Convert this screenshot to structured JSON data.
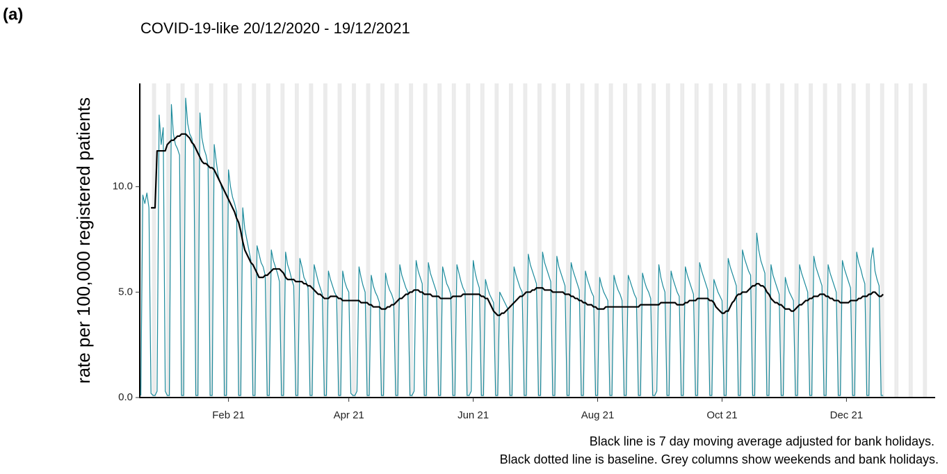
{
  "chart_data": {
    "type": "line",
    "panel_label": "(a)",
    "title": "COVID-19-like 20/12/2020 - 19/12/2021",
    "ylabel": "rate per 100,000 registered patients",
    "notes": [
      "Black line is 7 day moving average adjusted for bank holidays.",
      "Black dotted line is baseline. Grey columns show weekends and bank holidays."
    ],
    "ylim": [
      0,
      14.9
    ],
    "yticks": [
      {
        "value": 0,
        "label": "0.0"
      },
      {
        "value": 5,
        "label": "5.0"
      },
      {
        "value": 10,
        "label": "10.0"
      }
    ],
    "categories": [
      null,
      null,
      null,
      null,
      null,
      null,
      null,
      null,
      null,
      null,
      null,
      null,
      null,
      null,
      null,
      null,
      null,
      null,
      null,
      null,
      null,
      null,
      null,
      null,
      null,
      null,
      null,
      null,
      null,
      null,
      null,
      null,
      null,
      null,
      null,
      null,
      null,
      null,
      null,
      null,
      null,
      null,
      null,
      "Feb 21",
      null,
      null,
      null,
      null,
      null,
      null,
      null,
      null,
      null,
      null,
      null,
      null,
      null,
      null,
      null,
      null,
      null,
      null,
      null,
      null,
      null,
      null,
      null,
      null,
      null,
      null,
      null,
      null,
      null,
      null,
      null,
      null,
      null,
      null,
      null,
      null,
      null,
      null,
      null,
      null,
      null,
      null,
      null,
      null,
      null,
      null,
      null,
      null,
      null,
      null,
      null,
      null,
      null,
      null,
      null,
      null,
      null,
      null,
      "Apr 21",
      null,
      null,
      null,
      null,
      null,
      null,
      null,
      null,
      null,
      null,
      null,
      null,
      null,
      null,
      null,
      null,
      null,
      null,
      null,
      null,
      null,
      null,
      null,
      null,
      null,
      null,
      null,
      null,
      null,
      null,
      null,
      null,
      null,
      null,
      null,
      null,
      null,
      null,
      null,
      null,
      null,
      null,
      null,
      null,
      null,
      null,
      null,
      null,
      null,
      null,
      null,
      null,
      null,
      null,
      null,
      null,
      null,
      null,
      null,
      null,
      "Jun 21",
      null,
      null,
      null,
      null,
      null,
      null,
      null,
      null,
      null,
      null,
      null,
      null,
      null,
      null,
      null,
      null,
      null,
      null,
      null,
      null,
      null,
      null,
      null,
      null,
      null,
      null,
      null,
      null,
      null,
      null,
      null,
      null,
      null,
      null,
      null,
      null,
      null,
      null,
      null,
      null,
      null,
      null,
      null,
      null,
      null,
      null,
      null,
      null,
      null,
      null,
      null,
      null,
      null,
      null,
      null,
      null,
      null,
      null,
      null,
      null,
      "Aug 21",
      null,
      null,
      null,
      null,
      null,
      null,
      null,
      null,
      null,
      null,
      null,
      null,
      null,
      null,
      null,
      null,
      null,
      null,
      null,
      null,
      null,
      null,
      null,
      null,
      null,
      null,
      null,
      null,
      null,
      null,
      null,
      null,
      null,
      null,
      null,
      null,
      null,
      null,
      null,
      null,
      null,
      null,
      null,
      null,
      null,
      null,
      null,
      null,
      null,
      null,
      null,
      null,
      null,
      null,
      null,
      null,
      null,
      null,
      null,
      null,
      "Oct 21",
      null,
      null,
      null,
      null,
      null,
      null,
      null,
      null,
      null,
      null,
      null,
      null,
      null,
      null,
      null,
      null,
      null,
      null,
      null,
      null,
      null,
      null,
      null,
      null,
      null,
      null,
      null,
      null,
      null,
      null,
      null,
      null,
      null,
      null,
      null,
      null,
      null,
      null,
      null,
      null,
      null,
      null,
      null,
      null,
      null,
      null,
      null,
      null,
      null,
      null,
      null,
      null,
      null,
      null,
      null,
      null,
      null,
      null,
      null,
      null,
      "Dec 21",
      null,
      null,
      null,
      null,
      null,
      null,
      null,
      null,
      null,
      null,
      null,
      null,
      null,
      null,
      null,
      null,
      null,
      null,
      null,
      null,
      null,
      null,
      null,
      null,
      null,
      null,
      null,
      null,
      null,
      null,
      null,
      null,
      null,
      null,
      null,
      null,
      null,
      null,
      null,
      null,
      null,
      null,
      null
    ],
    "series": [
      {
        "color": "#1b8a9b",
        "width": 1.2,
        "values": [
          0.1,
          9.6,
          9.2,
          9.7,
          9.0,
          0.2,
          0.1,
          0.1,
          0.3,
          13.4,
          12.0,
          12.8,
          0.3,
          0.1,
          0.1,
          13.9,
          12.5,
          12.0,
          11.8,
          11.5,
          0.1,
          0.1,
          14.2,
          13.0,
          12.5,
          12.3,
          11.8,
          0.1,
          0.1,
          13.5,
          12.3,
          11.8,
          11.5,
          11.0,
          0.1,
          0.1,
          12.0,
          11.2,
          10.5,
          10.2,
          9.8,
          0.1,
          0.1,
          10.8,
          10.0,
          9.5,
          9.2,
          8.8,
          0.1,
          0.1,
          9.0,
          8.0,
          7.5,
          7.0,
          6.5,
          0.1,
          0.1,
          7.2,
          6.8,
          6.4,
          6.2,
          5.8,
          0.1,
          0.1,
          7.0,
          6.5,
          6.2,
          5.9,
          5.5,
          0.1,
          0.1,
          6.9,
          6.3,
          6.0,
          5.6,
          5.3,
          0.1,
          0.1,
          6.6,
          6.2,
          5.7,
          5.5,
          5.2,
          0.1,
          0.1,
          6.3,
          5.9,
          5.5,
          5.2,
          4.9,
          0.1,
          0.1,
          6.0,
          5.6,
          5.3,
          5.0,
          4.8,
          0.1,
          0.1,
          6.0,
          5.5,
          5.2,
          5.0,
          0.2,
          0.1,
          0.1,
          0.3,
          6.2,
          5.7,
          5.3,
          5.0,
          0.1,
          0.1,
          5.8,
          5.3,
          5.0,
          4.8,
          4.5,
          0.1,
          0.1,
          5.9,
          5.4,
          5.1,
          4.9,
          4.6,
          0.1,
          0.1,
          6.3,
          5.8,
          5.5,
          5.2,
          5.0,
          0.1,
          0.1,
          0.3,
          6.5,
          6.0,
          5.7,
          5.4,
          0.1,
          0.1,
          6.4,
          5.9,
          5.6,
          5.3,
          5.0,
          0.1,
          0.1,
          6.2,
          5.8,
          5.4,
          5.2,
          4.9,
          0.1,
          0.1,
          6.3,
          5.9,
          5.5,
          5.2,
          5.0,
          0.1,
          0.1,
          0.3,
          6.5,
          5.9,
          5.5,
          5.2,
          0.1,
          0.1,
          5.6,
          5.2,
          4.9,
          4.7,
          4.5,
          0.1,
          0.1,
          5.0,
          4.8,
          4.6,
          4.4,
          4.2,
          0.1,
          0.1,
          6.2,
          5.8,
          5.5,
          5.2,
          5.0,
          0.1,
          0.1,
          6.8,
          6.3,
          6.0,
          5.7,
          5.4,
          0.1,
          0.1,
          6.9,
          6.4,
          6.1,
          5.8,
          5.5,
          0.1,
          0.1,
          6.7,
          6.2,
          5.9,
          5.6,
          5.3,
          0.1,
          0.1,
          6.4,
          6.0,
          5.7,
          5.4,
          5.1,
          0.1,
          0.1,
          6.0,
          5.6,
          5.3,
          5.0,
          4.8,
          0.1,
          0.1,
          5.7,
          5.3,
          5.0,
          4.8,
          4.6,
          0.1,
          0.1,
          5.8,
          5.4,
          5.1,
          4.9,
          4.6,
          0.1,
          0.1,
          5.8,
          5.5,
          5.2,
          4.9,
          4.7,
          0.1,
          0.1,
          5.9,
          5.5,
          5.2,
          5.0,
          4.7,
          0.1,
          0.1,
          0.3,
          6.3,
          5.7,
          5.3,
          5.0,
          0.1,
          0.1,
          6.0,
          5.6,
          5.3,
          5.0,
          4.8,
          0.1,
          0.1,
          6.2,
          5.8,
          5.5,
          5.2,
          4.9,
          0.1,
          0.1,
          6.4,
          6.0,
          5.7,
          5.4,
          5.1,
          0.1,
          0.1,
          5.6,
          5.3,
          5.0,
          4.8,
          4.6,
          0.1,
          0.1,
          6.6,
          6.2,
          5.9,
          5.6,
          5.3,
          0.1,
          0.1,
          7.0,
          6.6,
          6.3,
          6.0,
          5.8,
          0.1,
          0.1,
          7.8,
          7.0,
          6.5,
          6.2,
          5.9,
          0.1,
          0.1,
          6.3,
          5.8,
          5.5,
          5.2,
          4.9,
          0.1,
          0.1,
          5.7,
          5.3,
          5.0,
          4.8,
          4.6,
          0.1,
          0.1,
          6.3,
          5.9,
          5.6,
          5.3,
          5.0,
          0.1,
          0.1,
          6.7,
          6.2,
          5.9,
          5.6,
          5.3,
          0.1,
          0.1,
          6.3,
          5.9,
          5.6,
          5.3,
          5.0,
          0.1,
          0.1,
          6.5,
          6.1,
          5.8,
          5.5,
          5.2,
          0.1,
          0.1,
          6.9,
          6.4,
          6.1,
          5.7,
          5.4,
          0.1,
          0.1,
          6.5,
          7.1,
          6.0,
          5.6,
          5.3,
          0.1,
          0.1,
          null,
          null,
          null,
          null,
          null,
          null,
          null,
          null,
          null,
          null,
          null,
          null,
          null,
          null,
          null,
          null,
          null,
          null,
          null,
          null,
          null,
          null,
          null,
          null,
          null
        ]
      },
      {
        "color": "#000000",
        "width": 2.2,
        "values": [
          null,
          null,
          null,
          null,
          null,
          9.0,
          9.0,
          9.0,
          11.7,
          11.7,
          11.7,
          11.7,
          11.7,
          12.0,
          12.1,
          12.2,
          12.2,
          12.3,
          12.4,
          12.4,
          12.5,
          12.5,
          12.5,
          12.4,
          12.3,
          12.1,
          12.0,
          11.8,
          11.6,
          11.4,
          11.2,
          11.1,
          11.1,
          11.0,
          10.9,
          10.9,
          10.8,
          10.6,
          10.4,
          10.2,
          10.0,
          9.8,
          9.6,
          9.4,
          9.2,
          9.0,
          8.8,
          8.5,
          8.3,
          7.9,
          7.4,
          7.0,
          6.8,
          6.6,
          6.4,
          6.3,
          6.1,
          5.9,
          5.7,
          5.7,
          5.7,
          5.8,
          5.8,
          5.9,
          6.0,
          6.1,
          6.1,
          6.1,
          6.1,
          6.0,
          5.9,
          5.7,
          5.6,
          5.6,
          5.6,
          5.6,
          5.5,
          5.5,
          5.5,
          5.5,
          5.4,
          5.4,
          5.3,
          5.3,
          5.2,
          5.1,
          5.0,
          4.9,
          4.9,
          4.8,
          4.7,
          4.7,
          4.7,
          4.8,
          4.8,
          4.8,
          4.8,
          4.7,
          4.7,
          4.6,
          4.6,
          4.6,
          4.6,
          4.6,
          4.6,
          4.6,
          4.6,
          4.6,
          4.5,
          4.5,
          4.5,
          4.5,
          4.4,
          4.4,
          4.3,
          4.3,
          4.3,
          4.3,
          4.2,
          4.2,
          4.2,
          4.3,
          4.3,
          4.4,
          4.4,
          4.5,
          4.6,
          4.7,
          4.7,
          4.8,
          4.9,
          4.9,
          5.0,
          5.0,
          5.1,
          5.1,
          5.1,
          5.0,
          5.0,
          4.9,
          4.9,
          4.9,
          4.9,
          4.8,
          4.8,
          4.8,
          4.8,
          4.7,
          4.7,
          4.7,
          4.7,
          4.7,
          4.7,
          4.8,
          4.8,
          4.8,
          4.8,
          4.8,
          4.9,
          4.9,
          4.9,
          4.9,
          4.9,
          4.9,
          4.9,
          4.9,
          4.9,
          4.8,
          4.8,
          4.7,
          4.7,
          4.5,
          4.3,
          4.1,
          4.0,
          3.9,
          3.9,
          4.0,
          4.0,
          4.1,
          4.2,
          4.3,
          4.4,
          4.5,
          4.6,
          4.7,
          4.8,
          4.8,
          4.9,
          5.0,
          5.0,
          5.0,
          5.1,
          5.1,
          5.2,
          5.2,
          5.2,
          5.2,
          5.1,
          5.1,
          5.1,
          5.1,
          5.0,
          5.0,
          5.0,
          5.0,
          5.0,
          5.0,
          4.9,
          4.9,
          4.9,
          4.8,
          4.8,
          4.7,
          4.7,
          4.6,
          4.6,
          4.5,
          4.5,
          4.4,
          4.4,
          4.4,
          4.3,
          4.3,
          4.2,
          4.2,
          4.2,
          4.2,
          4.3,
          4.3,
          4.3,
          4.3,
          4.3,
          4.3,
          4.3,
          4.3,
          4.3,
          4.3,
          4.3,
          4.3,
          4.3,
          4.3,
          4.3,
          4.3,
          4.3,
          4.4,
          4.4,
          4.4,
          4.4,
          4.4,
          4.4,
          4.4,
          4.4,
          4.4,
          4.4,
          4.5,
          4.5,
          4.5,
          4.5,
          4.5,
          4.5,
          4.5,
          4.5,
          4.4,
          4.4,
          4.4,
          4.4,
          4.5,
          4.5,
          4.6,
          4.6,
          4.6,
          4.6,
          4.7,
          4.7,
          4.7,
          4.7,
          4.7,
          4.7,
          4.6,
          4.6,
          4.5,
          4.3,
          4.2,
          4.1,
          4.0,
          4.0,
          4.1,
          4.1,
          4.3,
          4.5,
          4.6,
          4.8,
          4.9,
          4.9,
          5.0,
          5.0,
          5.0,
          5.1,
          5.2,
          5.3,
          5.3,
          5.4,
          5.4,
          5.3,
          5.3,
          5.2,
          5.0,
          4.9,
          4.7,
          4.6,
          4.5,
          4.5,
          4.4,
          4.4,
          4.3,
          4.2,
          4.2,
          4.2,
          4.1,
          4.1,
          4.2,
          4.3,
          4.4,
          4.4,
          4.5,
          4.6,
          4.6,
          4.7,
          4.7,
          4.8,
          4.8,
          4.8,
          4.9,
          4.9,
          4.9,
          4.8,
          4.8,
          4.7,
          4.7,
          4.6,
          4.6,
          4.6,
          4.5,
          4.5,
          4.5,
          4.5,
          4.5,
          4.6,
          4.6,
          4.6,
          4.6,
          4.7,
          4.7,
          4.8,
          4.8,
          4.8,
          4.9,
          4.9,
          5.0,
          5.0,
          4.9,
          4.8,
          4.8,
          4.9,
          null,
          null,
          null,
          null,
          null,
          null,
          null,
          null,
          null,
          null,
          null,
          null,
          null,
          null,
          null,
          null,
          null,
          null,
          null,
          null,
          null,
          null,
          null,
          null,
          null
        ]
      }
    ]
  }
}
